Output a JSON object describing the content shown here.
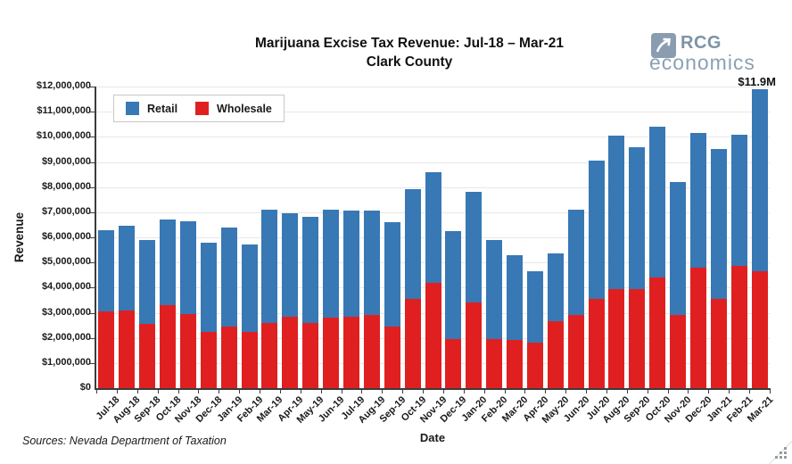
{
  "header": {
    "title_line1": "Marijuana Excise Tax Revenue: Jul-18 – Mar-21",
    "title_line2": "Clark County",
    "logo": {
      "name": "RCG",
      "sub": "économics",
      "icon": "arrow-up-right-icon",
      "color": "#7E92A6",
      "sub_color": "#8CA1B4"
    }
  },
  "legend": {
    "items": [
      {
        "label": "Retail",
        "color": "#3878B4"
      },
      {
        "label": "Wholesale",
        "color": "#E02020"
      }
    ]
  },
  "footer": {
    "sources": "Sources: Nevada Department of Taxation"
  },
  "chart_data": {
    "type": "bar",
    "stacked": true,
    "title": "Marijuana Excise Tax Revenue: Jul-18 – Mar-21",
    "subtitle": "Clark County",
    "xlabel": "Date",
    "ylabel": "Revenue",
    "ylim": [
      0,
      12000000
    ],
    "ytick_step": 1000000,
    "ytick_format": "$#,##0",
    "grid": true,
    "legend_position": "top-left-inside",
    "colors": {
      "retail": "#3878B4",
      "wholesale": "#E02020",
      "gridline": "#e7e7e7",
      "axis": "#3c3c3c"
    },
    "categories": [
      "Jul-18",
      "Aug-18",
      "Sep-18",
      "Oct-18",
      "Nov-18",
      "Dec-18",
      "Jan-19",
      "Feb-19",
      "Mar-19",
      "Apr-19",
      "May-19",
      "Jun-19",
      "Jul-19",
      "Aug-19",
      "Sep-19",
      "Oct-19",
      "Nov-19",
      "Dec-19",
      "Jan-20",
      "Feb-20",
      "Mar-20",
      "Apr-20",
      "May-20",
      "Jun-20",
      "Jul-20",
      "Aug-20",
      "Sep-20",
      "Oct-20",
      "Nov-20",
      "Dec-20",
      "Jan-21",
      "Feb-21",
      "Mar-21"
    ],
    "series": [
      {
        "name": "Wholesale",
        "color": "#E02020",
        "values": [
          3050000,
          3100000,
          2550000,
          3300000,
          2950000,
          2250000,
          2450000,
          2250000,
          2600000,
          2850000,
          2600000,
          2800000,
          2850000,
          2900000,
          2450000,
          3550000,
          4200000,
          1950000,
          3400000,
          1950000,
          1900000,
          1800000,
          2650000,
          2900000,
          3550000,
          3950000,
          3950000,
          4400000,
          2900000,
          4800000,
          3550000,
          4850000,
          4650000
        ]
      },
      {
        "name": "Retail",
        "color": "#3878B4",
        "values": [
          3250000,
          3350000,
          3350000,
          3400000,
          3700000,
          3550000,
          3950000,
          3450000,
          4500000,
          4100000,
          4200000,
          4300000,
          4200000,
          4150000,
          4150000,
          4350000,
          4400000,
          4300000,
          4400000,
          3950000,
          3400000,
          2850000,
          2700000,
          4200000,
          5500000,
          6100000,
          5650000,
          6000000,
          5300000,
          5350000,
          5950000,
          5250000,
          7250000
        ]
      }
    ],
    "annotations": [
      {
        "text": "$11.9M",
        "category": "Mar-21",
        "position": "above-bar"
      }
    ]
  }
}
